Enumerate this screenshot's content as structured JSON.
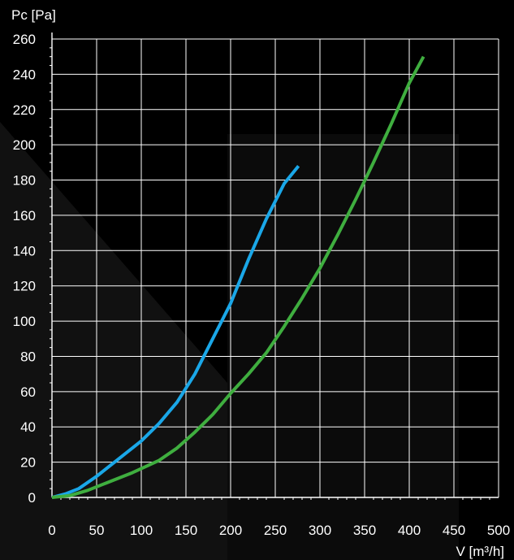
{
  "chart_data": {
    "type": "line",
    "title": "",
    "xlabel": "V [m³/h]",
    "ylabel": "Pc [Pa]",
    "xlim": [
      0,
      500
    ],
    "ylim": [
      0,
      260
    ],
    "x_ticks": [
      0,
      50,
      100,
      150,
      200,
      250,
      300,
      350,
      400,
      450,
      500
    ],
    "y_ticks": [
      0,
      20,
      40,
      60,
      80,
      100,
      120,
      140,
      160,
      180,
      200,
      220,
      240,
      260
    ],
    "grid": true,
    "legend": "none",
    "series": [
      {
        "color": "#1aa7e8",
        "x": [
          0,
          15,
          30,
          50,
          75,
          100,
          120,
          140,
          160,
          180,
          200,
          220,
          240,
          260,
          276
        ],
        "y": [
          0,
          2,
          5,
          12,
          22,
          32,
          42,
          54,
          70,
          90,
          110,
          135,
          158,
          178,
          188
        ]
      },
      {
        "color": "#3fae3f",
        "x": [
          0,
          20,
          40,
          60,
          90,
          120,
          140,
          160,
          180,
          200,
          220,
          240,
          260,
          280,
          300,
          320,
          340,
          360,
          380,
          400,
          416
        ],
        "y": [
          0,
          1,
          4,
          8,
          14,
          21,
          28,
          37,
          47,
          59,
          70,
          82,
          97,
          113,
          130,
          149,
          169,
          190,
          212,
          235,
          250
        ]
      }
    ]
  }
}
